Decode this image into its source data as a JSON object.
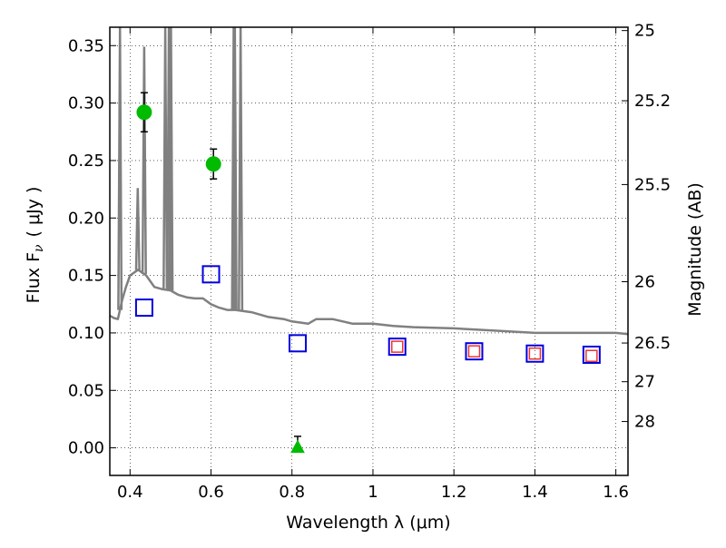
{
  "chart_data": {
    "type": "scatter",
    "xlabel": "Wavelength  λ (μm)",
    "ylabel": "Flux  F",
    "ylabel_sub": "ν",
    "ylabel_unit": "( μJy )",
    "y2label": "Magnitude (AB)",
    "xlim": [
      0.35,
      1.63
    ],
    "ylim": [
      -0.024,
      0.366
    ],
    "grid": true,
    "x_ticks": [
      0.4,
      0.6,
      0.8,
      1.0,
      1.2,
      1.4,
      1.6
    ],
    "x_tick_labels": [
      "0.4",
      "0.6",
      "0.8",
      "1",
      "1.2",
      "1.4",
      "1.6"
    ],
    "y_ticks": [
      0.0,
      0.05,
      0.1,
      0.15,
      0.2,
      0.25,
      0.3,
      0.35
    ],
    "y_tick_labels": [
      "0.00",
      "0.05",
      "0.10",
      "0.15",
      "0.20",
      "0.25",
      "0.30",
      "0.35"
    ],
    "mag_ticks": [
      25,
      25.2,
      25.5,
      26,
      26.5,
      27,
      28
    ],
    "mag_tick_labels": [
      "25",
      "25.2",
      "25.5",
      "26",
      "26.5",
      "27",
      "28"
    ],
    "series": [
      {
        "kind": "spectrum",
        "color": "#808080",
        "continuum": [
          [
            0.35,
            0.115
          ],
          [
            0.36,
            0.113
          ],
          [
            0.37,
            0.112
          ],
          [
            0.38,
            0.128
          ],
          [
            0.39,
            0.14
          ],
          [
            0.4,
            0.15
          ],
          [
            0.42,
            0.155
          ],
          [
            0.44,
            0.15
          ],
          [
            0.46,
            0.14
          ],
          [
            0.48,
            0.138
          ],
          [
            0.5,
            0.137
          ],
          [
            0.52,
            0.133
          ],
          [
            0.54,
            0.131
          ],
          [
            0.56,
            0.13
          ],
          [
            0.58,
            0.13
          ],
          [
            0.6,
            0.125
          ],
          [
            0.62,
            0.122
          ],
          [
            0.64,
            0.12
          ],
          [
            0.66,
            0.12
          ],
          [
            0.7,
            0.118
          ],
          [
            0.74,
            0.114
          ],
          [
            0.78,
            0.112
          ],
          [
            0.8,
            0.11
          ],
          [
            0.84,
            0.108
          ],
          [
            0.86,
            0.112
          ],
          [
            0.9,
            0.112
          ],
          [
            0.95,
            0.108
          ],
          [
            1.0,
            0.108
          ],
          [
            1.05,
            0.106
          ],
          [
            1.1,
            0.105
          ],
          [
            1.2,
            0.104
          ],
          [
            1.3,
            0.102
          ],
          [
            1.4,
            0.1
          ],
          [
            1.5,
            0.1
          ],
          [
            1.6,
            0.1
          ],
          [
            1.63,
            0.099
          ]
        ],
        "lines": [
          {
            "x": 0.375,
            "peak": 0.366
          },
          {
            "x": 0.419,
            "peak": 0.226
          },
          {
            "x": 0.435,
            "peak": 0.349
          },
          {
            "x": 0.487,
            "peak": 0.366
          },
          {
            "x": 0.496,
            "peak": 0.366
          },
          {
            "x": 0.501,
            "peak": 0.366
          },
          {
            "x": 0.656,
            "peak": 0.366
          },
          {
            "x": 0.659,
            "peak": 0.366
          },
          {
            "x": 0.673,
            "peak": 0.366
          }
        ]
      },
      {
        "kind": "detections",
        "marker": "circle",
        "color": "#00bb00",
        "points": [
          [
            0.435,
            0.292,
            0.017
          ],
          [
            0.606,
            0.247,
            0.013
          ]
        ]
      },
      {
        "kind": "upper_limit",
        "marker": "triangle",
        "color": "#00bb00",
        "points": [
          [
            0.814,
            0.0,
            0.01
          ]
        ]
      },
      {
        "kind": "model_photometry",
        "marker": "square",
        "color": "#0000dd",
        "points": [
          [
            0.435,
            0.122
          ],
          [
            0.6,
            0.151
          ],
          [
            0.814,
            0.091
          ],
          [
            1.06,
            0.088
          ],
          [
            1.25,
            0.084
          ],
          [
            1.4,
            0.082
          ],
          [
            1.54,
            0.081
          ]
        ]
      },
      {
        "kind": "observed_photometry",
        "marker": "square",
        "color": "#ee3333",
        "points": [
          [
            1.06,
            0.088
          ],
          [
            1.25,
            0.084
          ],
          [
            1.4,
            0.082
          ],
          [
            1.54,
            0.08
          ]
        ]
      }
    ]
  }
}
